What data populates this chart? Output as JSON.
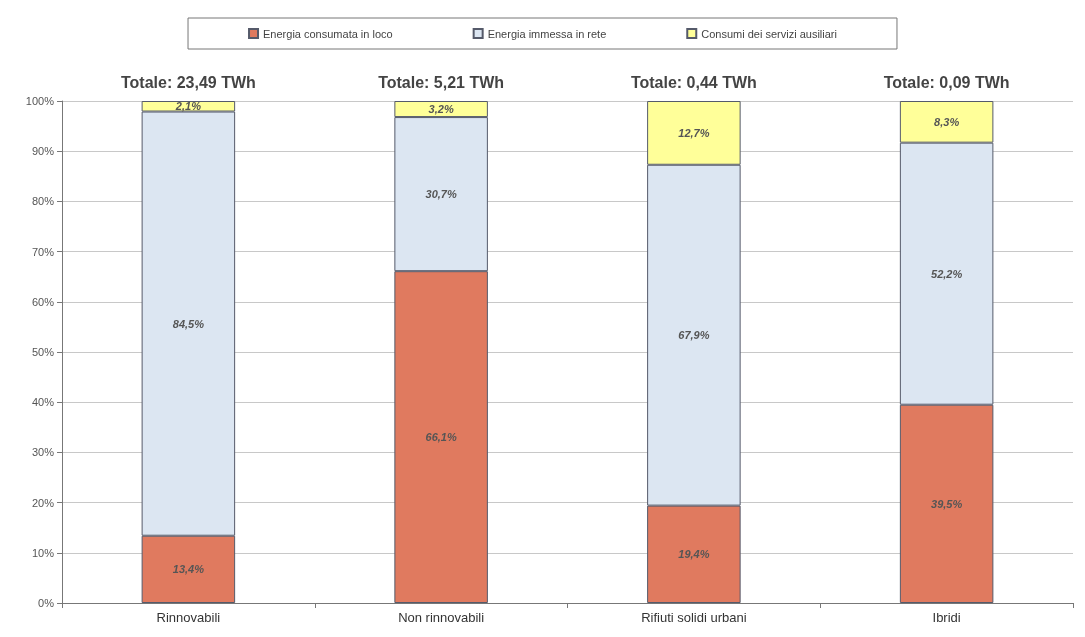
{
  "chart_data": {
    "type": "bar",
    "stacked": true,
    "categories": [
      "Rinnovabili",
      "Non rinnovabili",
      "Rifiuti solidi urbani",
      "Ibridi"
    ],
    "series": [
      {
        "name": "Energia consumata in loco",
        "color": "#e07a5f",
        "values": [
          13.4,
          66.1,
          19.4,
          39.5
        ],
        "value_labels": [
          "13,4%",
          "66,1%",
          "19,4%",
          "39,5%"
        ]
      },
      {
        "name": "Energia immessa in rete",
        "color": "#dce6f2",
        "values": [
          84.5,
          30.7,
          67.9,
          52.2
        ],
        "value_labels": [
          "84,5%",
          "30,7%",
          "67,9%",
          "52,2%"
        ]
      },
      {
        "name": "Consumi dei servizi ausiliari",
        "color": "#ffff99",
        "values": [
          2.1,
          3.2,
          12.7,
          8.3
        ],
        "value_labels": [
          "2,1%",
          "3,2%",
          "12,7%",
          "8,3%"
        ]
      }
    ],
    "annotations": [
      "Totale: 23,49 TWh",
      "Totale: 5,21 TWh",
      "Totale: 0,44 TWh",
      "Totale: 0,09 TWh"
    ],
    "ylim": [
      0,
      100
    ],
    "yticks": [
      {
        "value": 0,
        "label": "0%"
      },
      {
        "value": 10,
        "label": "10%"
      },
      {
        "value": 20,
        "label": "20%"
      },
      {
        "value": 30,
        "label": "30%"
      },
      {
        "value": 40,
        "label": "40%"
      },
      {
        "value": 50,
        "label": "50%"
      },
      {
        "value": 60,
        "label": "60%"
      },
      {
        "value": 70,
        "label": "70%"
      },
      {
        "value": 80,
        "label": "80%"
      },
      {
        "value": 90,
        "label": "90%"
      },
      {
        "value": 100,
        "label": "100%"
      }
    ],
    "grid": "y",
    "legend": "top"
  }
}
